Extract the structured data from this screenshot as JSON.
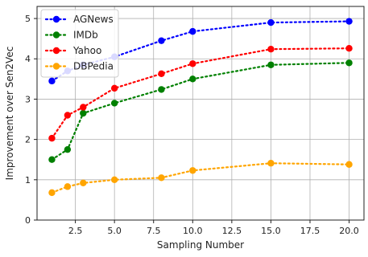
{
  "chart_data": {
    "type": "line",
    "title": "",
    "xlabel": "Sampling Number",
    "ylabel": "Improvement over Sen2Vec",
    "xlim": [
      0.05,
      20.95
    ],
    "ylim": [
      0,
      5.3
    ],
    "xticks": [
      2.5,
      5.0,
      7.5,
      10.0,
      12.5,
      15.0,
      17.5,
      20.0
    ],
    "xtick_labels": [
      "2.5",
      "5.0",
      "7.5",
      "10.0",
      "12.5",
      "15.0",
      "17.5",
      "20.0"
    ],
    "yticks": [
      0,
      1,
      2,
      3,
      4,
      5
    ],
    "ytick_labels": [
      "0",
      "1",
      "2",
      "3",
      "4",
      "5"
    ],
    "grid": true,
    "legend_position": "top-left",
    "x": [
      1,
      2,
      3,
      5,
      8,
      10,
      15,
      20
    ],
    "series": [
      {
        "name": "AGNews",
        "color": "#0000ff",
        "values": [
          3.45,
          3.7,
          3.85,
          4.05,
          4.45,
          4.68,
          4.9,
          4.93
        ]
      },
      {
        "name": "IMDb",
        "color": "#008000",
        "values": [
          1.5,
          1.75,
          2.65,
          2.9,
          3.24,
          3.5,
          3.85,
          3.9
        ]
      },
      {
        "name": "Yahoo",
        "color": "#ff0000",
        "values": [
          2.03,
          2.6,
          2.8,
          3.27,
          3.63,
          3.88,
          4.24,
          4.26
        ]
      },
      {
        "name": "DBPedia",
        "color": "#ffa500",
        "values": [
          0.68,
          0.83,
          0.92,
          1.0,
          1.05,
          1.23,
          1.41,
          1.38
        ]
      }
    ]
  }
}
